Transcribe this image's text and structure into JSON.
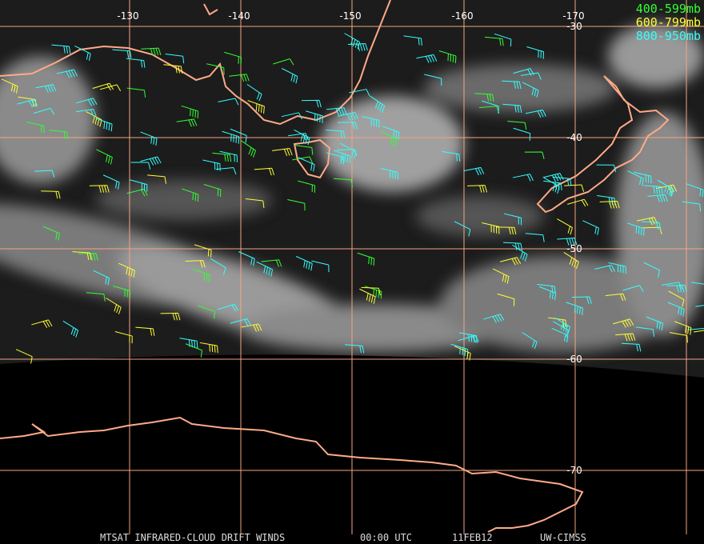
{
  "map": {
    "lon_labels": [
      "-130",
      "-140",
      "-150",
      "-160",
      "-170"
    ],
    "lat_labels": [
      "-30",
      "-40",
      "-50",
      "-60",
      "-70"
    ],
    "legend": [
      {
        "text": "400-599mb",
        "color": "#33ff33"
      },
      {
        "text": "600-799mb",
        "color": "#ffff33"
      },
      {
        "text": "800-950mb",
        "color": "#33ffff"
      }
    ],
    "footer": [
      "MTSAT INFRARED-CLOUD DRIFT WINDS",
      "00:00 UTC",
      "11FEB12",
      "UW-CIMSS"
    ]
  }
}
